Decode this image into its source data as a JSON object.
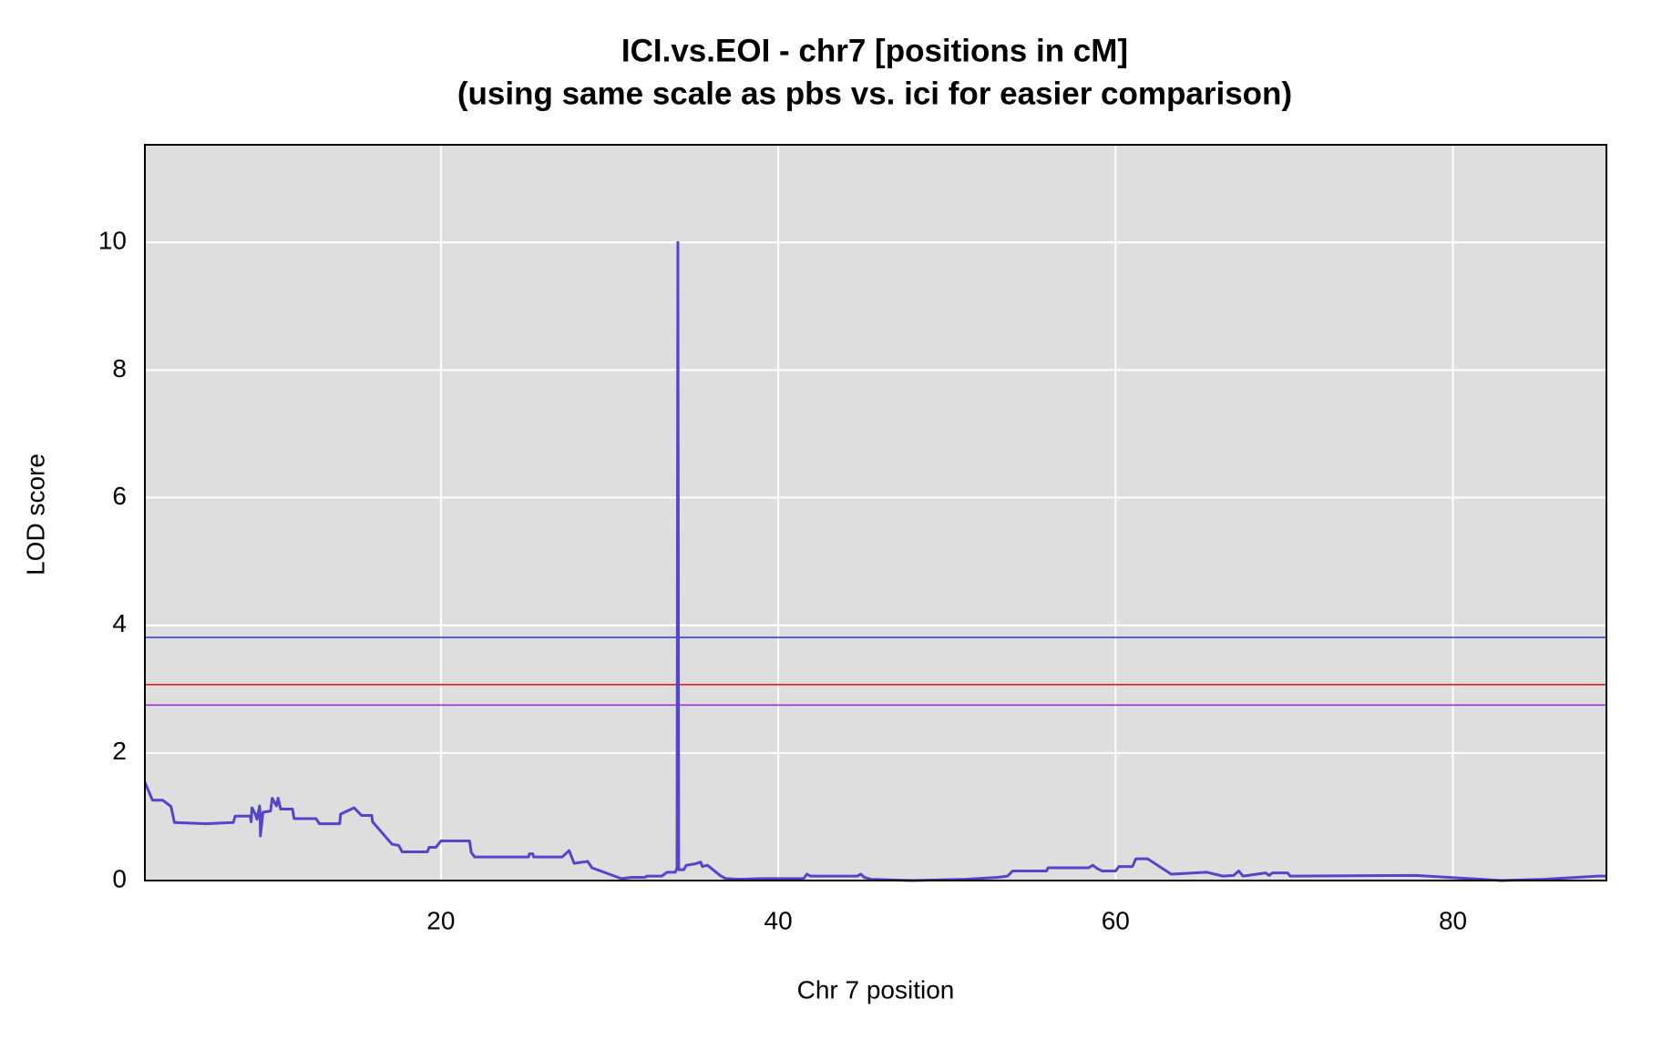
{
  "chart_data": {
    "type": "line",
    "title": "ICI.vs.EOI - chr7 [positions in cM]",
    "subtitle": "(using same scale as pbs  vs. ici for easier comparison)",
    "xlabel": "Chr 7 position",
    "ylabel": "LOD score",
    "xlim": [
      2.45,
      89.1
    ],
    "ylim": [
      0,
      11.53
    ],
    "xticks": [
      20,
      40,
      60,
      80
    ],
    "yticks": [
      0,
      2,
      4,
      6,
      8,
      10
    ],
    "grid": true,
    "x": [
      2.45,
      2.9,
      3.5,
      4.0,
      4.2,
      6.1,
      7.7,
      7.8,
      8.7,
      8.75,
      8.8,
      9.0,
      9.1,
      9.25,
      9.28,
      9.3,
      9.45,
      9.9,
      10.0,
      10.25,
      10.35,
      10.5,
      11.2,
      11.3,
      12.6,
      12.8,
      14.0,
      14.05,
      14.85,
      15.3,
      15.9,
      15.95,
      17.1,
      17.5,
      17.7,
      19.2,
      19.3,
      19.7,
      20.0,
      21.7,
      21.8,
      22.0,
      25.2,
      25.25,
      25.45,
      25.5,
      27.2,
      27.6,
      27.75,
      27.9,
      28.7,
      28.96,
      30.7,
      31.3,
      32.1,
      32.2,
      33.1,
      33.4,
      33.9,
      34.0,
      34.05,
      34.1,
      34.4,
      34.55,
      35.05,
      35.4,
      35.5,
      35.8,
      36.6,
      36.9,
      37.7,
      39.0,
      41.5,
      41.7,
      41.9,
      44.7,
      44.9,
      45.1,
      45.5,
      47.9,
      51.1,
      53.0,
      53.6,
      53.9,
      55.9,
      56.0,
      58.4,
      58.65,
      58.9,
      59.2,
      60.0,
      60.2,
      61.0,
      61.2,
      61.9,
      63.3,
      65.4,
      66.35,
      67.0,
      67.3,
      67.55,
      68.9,
      69.1,
      69.3,
      70.2,
      70.35,
      77.8,
      82.9,
      85.4,
      88.6,
      89.1
    ],
    "series": [
      {
        "name": "LOD",
        "color": "#5544cc",
        "values": [
          1.54,
          1.26,
          1.26,
          1.16,
          0.91,
          0.89,
          0.91,
          1.01,
          1.01,
          0.92,
          1.14,
          1.04,
          0.96,
          1.17,
          1.04,
          0.7,
          1.07,
          1.09,
          1.29,
          1.17,
          1.29,
          1.12,
          1.12,
          0.97,
          0.97,
          0.89,
          0.89,
          1.04,
          1.14,
          1.02,
          1.02,
          0.92,
          0.57,
          0.55,
          0.45,
          0.45,
          0.52,
          0.52,
          0.62,
          0.62,
          0.44,
          0.37,
          0.37,
          0.42,
          0.42,
          0.37,
          0.37,
          0.47,
          0.37,
          0.27,
          0.3,
          0.2,
          0.03,
          0.05,
          0.05,
          0.07,
          0.07,
          0.13,
          0.13,
          0.2,
          10.0,
          0.17,
          0.17,
          0.24,
          0.26,
          0.29,
          0.22,
          0.24,
          0.07,
          0.03,
          0.02,
          0.03,
          0.03,
          0.1,
          0.07,
          0.07,
          0.1,
          0.05,
          0.02,
          0.0,
          0.02,
          0.05,
          0.07,
          0.15,
          0.15,
          0.2,
          0.2,
          0.24,
          0.19,
          0.15,
          0.15,
          0.22,
          0.22,
          0.34,
          0.34,
          0.1,
          0.13,
          0.07,
          0.08,
          0.15,
          0.07,
          0.12,
          0.08,
          0.12,
          0.12,
          0.07,
          0.08,
          0.0,
          0.02,
          0.07,
          0.07
        ]
      }
    ],
    "hlines": [
      {
        "value": 3.81,
        "color": "#2233ee"
      },
      {
        "value": 3.07,
        "color": "#e02020"
      },
      {
        "value": 2.75,
        "color": "#9933dd"
      }
    ]
  }
}
